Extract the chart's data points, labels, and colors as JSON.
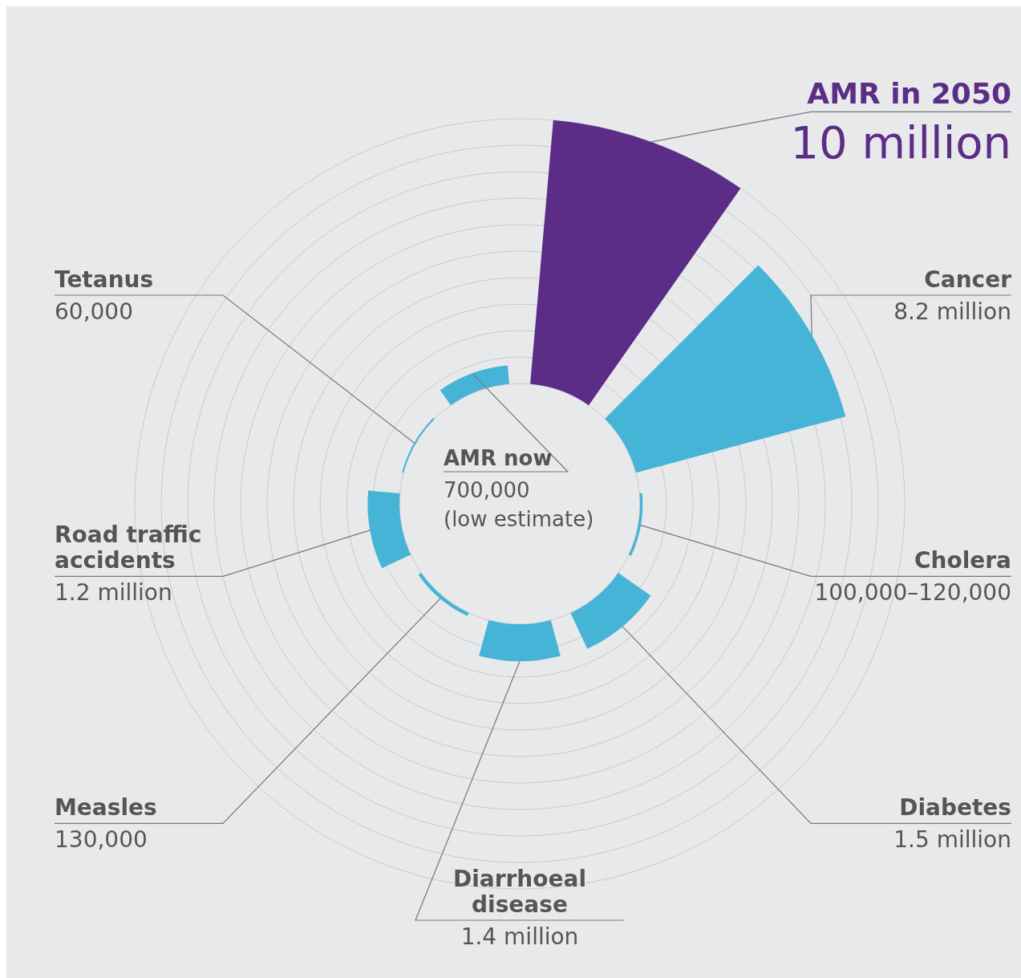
{
  "chart_data": {
    "type": "other",
    "categories": [
      "AMR now",
      "AMR in 2050",
      "Cancer",
      "Cholera",
      "Diabetes",
      "Diarrhoeal disease",
      "Measles",
      "Road traffic accidents",
      "Tetanus"
    ],
    "values": [
      700000,
      10000000,
      8200000,
      100000,
      1500000,
      1400000,
      130000,
      1200000,
      60000
    ],
    "value_labels": [
      "700,000",
      "10 million",
      "8.2 million",
      "100,000–120,000",
      "1.5 million",
      "1.4 million",
      "130,000",
      "1.2 million",
      "60,000"
    ],
    "colors": [
      "#45b4d6",
      "#5b2d86",
      "#45b4d6",
      "#45b4d6",
      "#45b4d6",
      "#45b4d6",
      "#45b4d6",
      "#45b4d6",
      "#45b4d6"
    ],
    "annotations": [
      "(low estimate)"
    ]
  }
}
